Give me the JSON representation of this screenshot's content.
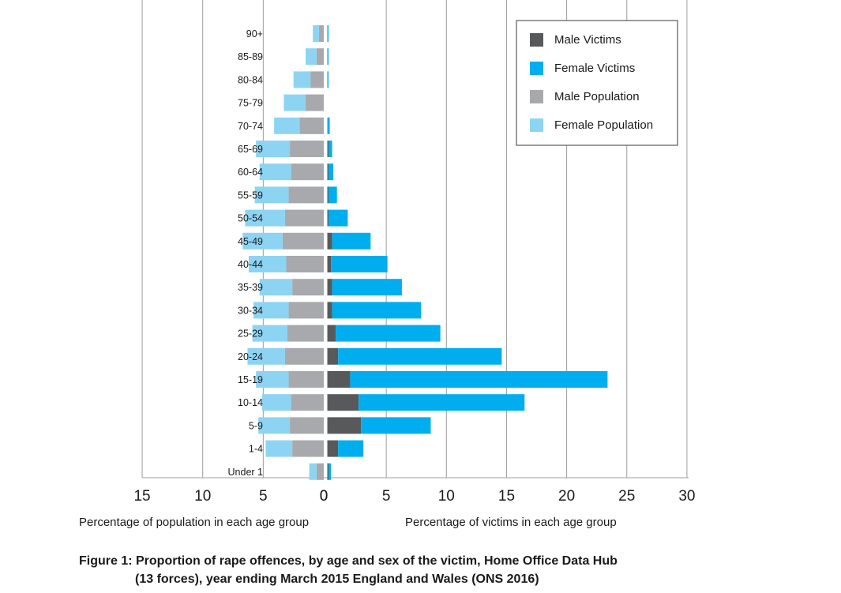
{
  "chart_data": {
    "type": "bar",
    "orientation": "horizontal",
    "layout": "population-pyramid",
    "categories": [
      "Under 1",
      "1-4",
      "5-9",
      "10-14",
      "15-19",
      "20-24",
      "25-29",
      "30-34",
      "35-39",
      "40-44",
      "45-49",
      "50-54",
      "55-59",
      "60-64",
      "65-69",
      "70-74",
      "75-79",
      "80-84",
      "85-89",
      "90+"
    ],
    "left_panel": {
      "xlabel": "Percentage of population in each age group",
      "xlim": [
        15,
        0
      ],
      "ticks": [
        15,
        10,
        5,
        0
      ],
      "stacked": true,
      "series": [
        {
          "name": "Male Population",
          "color": "#a7a9ac",
          "values": [
            0.6,
            2.6,
            2.8,
            2.7,
            2.9,
            3.2,
            3.0,
            2.9,
            2.6,
            3.1,
            3.4,
            3.2,
            2.9,
            2.7,
            2.8,
            2.0,
            1.5,
            1.1,
            0.6,
            0.4
          ]
        },
        {
          "name": "Female Population",
          "color": "#8dd4f3",
          "values": [
            0.6,
            2.2,
            2.6,
            2.4,
            2.7,
            3.1,
            2.9,
            2.9,
            2.7,
            3.1,
            3.3,
            3.3,
            2.8,
            2.6,
            2.8,
            2.1,
            1.8,
            1.4,
            0.9,
            0.5
          ]
        }
      ]
    },
    "right_panel": {
      "xlabel": "Percentage of victims in each age group",
      "xlim": [
        0,
        30
      ],
      "ticks": [
        0,
        5,
        10,
        15,
        20,
        25,
        30
      ],
      "stacked": true,
      "series": [
        {
          "name": "Male Victims",
          "color": "#58595b",
          "values": [
            0.1,
            0.9,
            2.8,
            2.6,
            1.9,
            0.9,
            0.7,
            0.4,
            0.4,
            0.3,
            0.4,
            0.1,
            0.1,
            0.1,
            0.1,
            0.0,
            0.0,
            0.0,
            0.0,
            0.0
          ]
        },
        {
          "name": "Female Victims",
          "color": "#00aeef",
          "values": [
            0.2,
            2.1,
            5.8,
            13.8,
            21.4,
            13.6,
            8.7,
            7.4,
            5.8,
            4.7,
            3.2,
            1.6,
            0.7,
            0.4,
            0.3,
            0.2,
            0.0,
            0.1,
            0.1,
            0.1
          ]
        }
      ]
    },
    "legend": {
      "position": "top-right",
      "entries": [
        "Male Victims",
        "Female Victims",
        "Male Population",
        "Female Population"
      ]
    },
    "grid": true,
    "caption_line1": "Figure 1: Proportion of rape offences, by age and sex of the victim, Home Office Data Hub",
    "caption_line2": "(13 forces), year ending March 2015 England and Wales (ONS 2016)"
  }
}
